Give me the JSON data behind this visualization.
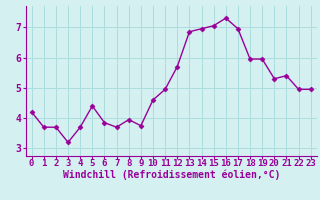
{
  "x": [
    0,
    1,
    2,
    3,
    4,
    5,
    6,
    7,
    8,
    9,
    10,
    11,
    12,
    13,
    14,
    15,
    16,
    17,
    18,
    19,
    20,
    21,
    22,
    23
  ],
  "y": [
    4.2,
    3.7,
    3.7,
    3.2,
    3.7,
    4.4,
    3.85,
    3.7,
    3.95,
    3.75,
    4.6,
    4.95,
    5.7,
    6.85,
    6.95,
    7.05,
    7.3,
    6.95,
    5.95,
    5.95,
    5.3,
    5.4,
    4.95,
    4.95
  ],
  "line_color": "#990099",
  "marker": "D",
  "marker_size": 2.5,
  "background_color": "#d4f0f0",
  "grid_color": "#aadddd",
  "xlabel": "Windchill (Refroidissement éolien,°C)",
  "xlabel_color": "#990099",
  "tick_color": "#990099",
  "label_color": "#990099",
  "ylim": [
    2.75,
    7.7
  ],
  "xlim": [
    -0.5,
    23.5
  ],
  "yticks": [
    3,
    4,
    5,
    6,
    7
  ],
  "xticks": [
    0,
    1,
    2,
    3,
    4,
    5,
    6,
    7,
    8,
    9,
    10,
    11,
    12,
    13,
    14,
    15,
    16,
    17,
    18,
    19,
    20,
    21,
    22,
    23
  ],
  "tick_fontsize": 6.5,
  "xlabel_fontsize": 7.0,
  "line_width": 1.0
}
